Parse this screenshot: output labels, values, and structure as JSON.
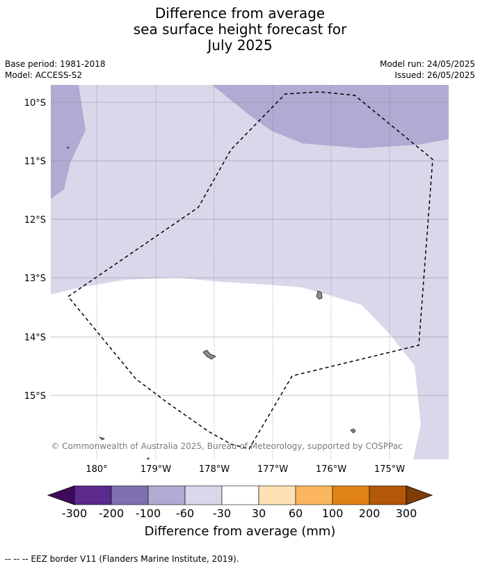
{
  "title": {
    "line1": "Difference from average",
    "line2": "sea surface height forecast for",
    "line3": "July 2025"
  },
  "meta": {
    "base_period": "Base period: 1981-2018",
    "model": "Model: ACCESS-S2",
    "model_run": "Model run: 24/05/2025",
    "issued": "Issued: 26/05/2025"
  },
  "map": {
    "lat_labels": [
      "10°S",
      "11°S",
      "12°S",
      "13°S",
      "14°S",
      "15°S"
    ],
    "lon_labels": [
      "180°",
      "179°W",
      "178°W",
      "177°W",
      "176°W",
      "175°W"
    ],
    "copyright": "© Commonwealth of Australia 2025, Bureau of Meteorology, supported by COSPPac",
    "colors": {
      "band_m60_m30": "#d8d8ea",
      "band_m100_m60": "#b1aad2",
      "band_m30_30": "#ffffff",
      "land": "#8c8c8c",
      "eez": "#000000"
    }
  },
  "colorbar": {
    "labels": [
      "-300",
      "-200",
      "-100",
      "-60",
      "-30",
      "30",
      "60",
      "100",
      "200",
      "300"
    ],
    "colors": [
      "#3f0a5e",
      "#5b2a8c",
      "#7f6fae",
      "#b1aad2",
      "#d8d8ea",
      "#ffffff",
      "#fde0b4",
      "#fbb65e",
      "#e08214",
      "#b35806",
      "#7f3b08"
    ],
    "title": "Difference from average (mm)"
  },
  "footnote": "--  --  -- EEZ border V11 (Flanders Marine Institute, 2019)."
}
